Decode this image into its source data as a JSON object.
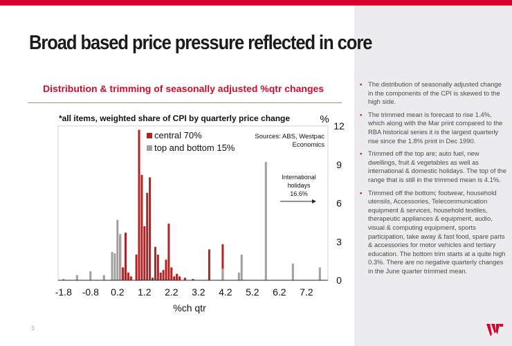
{
  "slide": {
    "title": "Broad based price pressure reflected in core",
    "subtitle": "Distribution & trimming of seasonally adjusted %qtr changes",
    "page_number": "3",
    "brand_color": "#d5002b",
    "logo_icon": "westpac-w-logo"
  },
  "bullets": [
    "The distribution of seasonally adjusted change in the components of the CPI is skewed to the high side.",
    "The trimmed mean is forecast to rise 1.4%, which along with the Mar print compared to the RBA historical series it is the largest quarterly rise since the 1.8% print in Dec 1990.",
    "Trimmed off the top are; auto fuel, new dwellings, fruit & vegetables as well as international & domestic holidays. The top of the range that is still in the trimmed mean is 4.1%.",
    "Trimmed off the bottom; footwear, household utensils, Accessories, Telecommunication equipment & services, household textiles, therapeutic appliances & equipment, audio, visual & computing equipment, sports participation, take away & fast food, spare parts & accessories for motor vehicles and tertiary education. The bottom trim starts at a quite high 0.3%. There are no negative quarterly changes in the June quarter trimmed mean."
  ],
  "chart_data": {
    "type": "bar",
    "title": "*all items, weighted share of CPI by quarterly price change",
    "xlabel": "%ch qtr",
    "ylabel": "%",
    "xlim": [
      -2.0,
      8.0
    ],
    "ylim": [
      0,
      12
    ],
    "xticks": [
      -1.8,
      -0.8,
      0.2,
      1.2,
      2.2,
      3.2,
      4.2,
      5.2,
      6.2,
      7.2
    ],
    "xtick_labels": [
      "-1.8",
      "-0.8",
      "0.2",
      "1.2",
      "2.2",
      "3.2",
      "4.2",
      "5.2",
      "6.2",
      "7.2"
    ],
    "yticks": [
      0,
      3,
      6,
      9,
      12
    ],
    "grid": false,
    "legend_position": "top-left",
    "source": "Sources: ABS, Westpac Economics",
    "annotation": {
      "text": "International holidays 16.6%",
      "lines": [
        "International",
        "holidays",
        "16.6%"
      ],
      "x": 5.9,
      "y": 6.2
    },
    "series": [
      {
        "name": "central 70%",
        "color": "#b22222",
        "x": [
          0.3,
          0.4,
          0.5,
          0.6,
          0.7,
          0.9,
          1.0,
          1.1,
          1.2,
          1.3,
          1.4,
          1.5,
          1.6,
          1.7,
          1.8,
          1.9,
          2.0,
          2.1,
          2.2,
          2.3,
          2.4,
          2.5,
          2.7,
          3.0,
          3.6,
          4.1
        ],
        "values": [
          3.4,
          1.0,
          3.7,
          0.6,
          0.3,
          2.0,
          11.7,
          8.2,
          4.2,
          6.8,
          8.0,
          0.2,
          2.6,
          2.0,
          0.6,
          0.8,
          1.6,
          4.4,
          1.0,
          0.3,
          0.5,
          0.3,
          0.2,
          0.1,
          2.4,
          2.8
        ]
      },
      {
        "name": "top and bottom 15%",
        "color": "#a0a0a0",
        "x": [
          -1.8,
          -1.3,
          -0.8,
          -0.3,
          0.0,
          0.1,
          0.2,
          0.3,
          4.1,
          4.7,
          4.8,
          5.7,
          6.7,
          7.7
        ],
        "values": [
          0.1,
          0.4,
          0.7,
          0.4,
          2.2,
          2.1,
          4.7,
          3.6,
          0.9,
          0.6,
          2.0,
          9.2,
          1.3,
          1.0
        ]
      }
    ]
  }
}
